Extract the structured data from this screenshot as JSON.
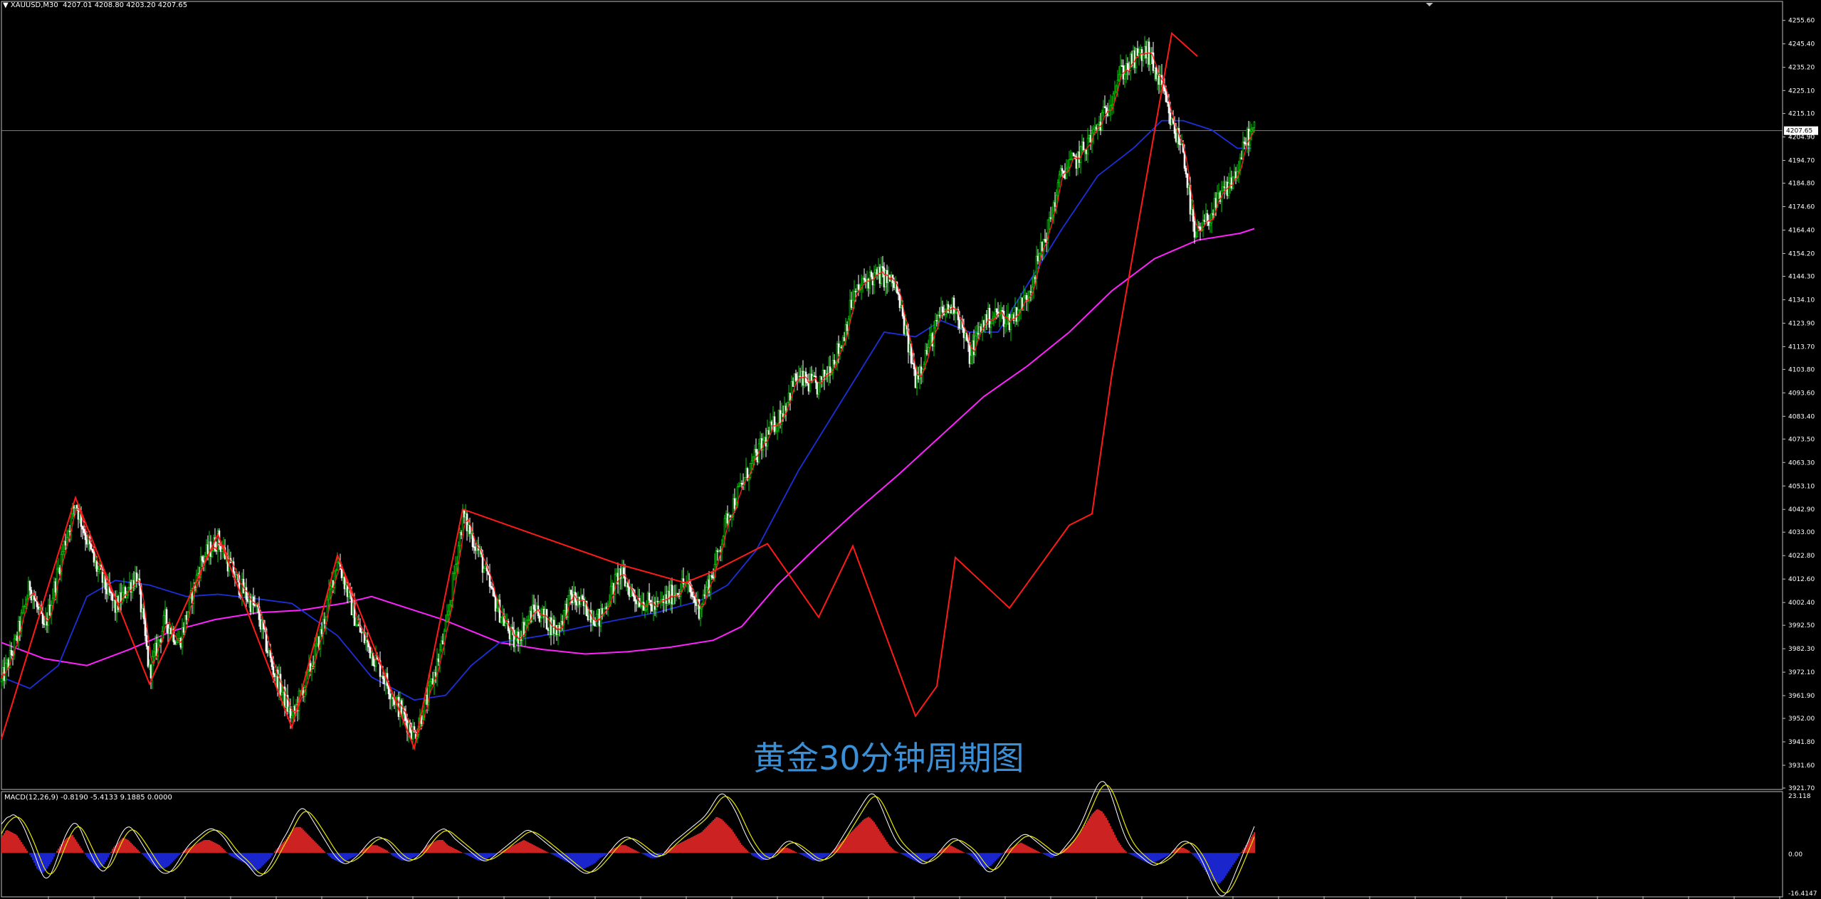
{
  "header": {
    "symbol": "XAUUSD,M30",
    "ohlc": "4207.01 4208.80 4203.20 4207.65"
  },
  "caption": "黄金30分钟周期图",
  "macd": {
    "label": "MACD(12,26,9) -0.8190 -5.4133 9.1885 0.0000",
    "ymax_label": "23.118",
    "zero_label": "0.00",
    "ymin_label": "-16.4147"
  },
  "colors": {
    "background": "#000000",
    "up_candle": "#00d000",
    "down_candle": "#ffffff",
    "ma_fast": "#ff2020",
    "ma_mid": "#1c2fd8",
    "ma_slow": "#ff22ff",
    "zigzag": "#ff1a1a",
    "macd_pos": "#ff2a2a",
    "macd_neg": "#2030ff",
    "macd_line": "#ffffff",
    "signal_line": "#e8e800",
    "price_line": "#808080"
  },
  "chart_data": [
    {
      "type": "candlestick",
      "symbol": "XAUUSD",
      "timeframe": "M30",
      "ylim": [
        3921.7,
        4260.0
      ],
      "current_price": 4207.65,
      "current_price_label": "4207.65",
      "y_ticks": [
        "4255.60",
        "4245.40",
        "4235.20",
        "4225.10",
        "4215.10",
        "4204.90",
        "4194.70",
        "4184.80",
        "4174.60",
        "4164.40",
        "4154.20",
        "4144.30",
        "4134.10",
        "4123.90",
        "4113.70",
        "4103.80",
        "4093.60",
        "4083.40",
        "4073.50",
        "4063.30",
        "4053.10",
        "4042.90",
        "4033.00",
        "4022.80",
        "4012.60",
        "4002.40",
        "3992.50",
        "3982.30",
        "3972.10",
        "3961.90",
        "3952.00",
        "3941.80",
        "3931.60",
        "3921.70"
      ],
      "zigzag_points": [
        [
          0,
          3943
        ],
        [
          52,
          4048
        ],
        [
          104,
          3967
        ],
        [
          152,
          4032
        ],
        [
          204,
          3948
        ],
        [
          236,
          4023
        ],
        [
          290,
          3939
        ],
        [
          324,
          4043
        ],
        [
          434,
          4019
        ],
        [
          480,
          4011
        ],
        [
          500,
          4016
        ],
        [
          538,
          4028
        ],
        [
          574,
          3996
        ],
        [
          598,
          4027
        ],
        [
          642,
          3953
        ],
        [
          657,
          3966
        ],
        [
          670,
          4022
        ],
        [
          708,
          4000
        ],
        [
          750,
          4036
        ],
        [
          766,
          4041
        ],
        [
          780,
          4102
        ],
        [
          822,
          4250
        ],
        [
          840,
          4240
        ]
      ],
      "price_path": [
        [
          0,
          3968
        ],
        [
          10,
          3985
        ],
        [
          20,
          4010
        ],
        [
          30,
          3990
        ],
        [
          45,
          4030
        ],
        [
          52,
          4046
        ],
        [
          65,
          4020
        ],
        [
          80,
          4000
        ],
        [
          95,
          4015
        ],
        [
          104,
          3972
        ],
        [
          115,
          3995
        ],
        [
          125,
          3985
        ],
        [
          140,
          4020
        ],
        [
          152,
          4030
        ],
        [
          165,
          4012
        ],
        [
          180,
          3998
        ],
        [
          190,
          3975
        ],
        [
          204,
          3952
        ],
        [
          215,
          3970
        ],
        [
          225,
          3990
        ],
        [
          236,
          4022
        ],
        [
          250,
          3992
        ],
        [
          265,
          3975
        ],
        [
          278,
          3958
        ],
        [
          290,
          3945
        ],
        [
          300,
          3962
        ],
        [
          312,
          3990
        ],
        [
          324,
          4040
        ],
        [
          335,
          4025
        ],
        [
          345,
          4005
        ],
        [
          360,
          3985
        ],
        [
          375,
          4000
        ],
        [
          390,
          3990
        ],
        [
          400,
          4005
        ],
        [
          410,
          4000
        ],
        [
          420,
          3995
        ],
        [
          434,
          4015
        ],
        [
          445,
          4005
        ],
        [
          460,
          4000
        ],
        [
          480,
          4011
        ],
        [
          490,
          4000
        ],
        [
          500,
          4016
        ],
        [
          510,
          4040
        ],
        [
          525,
          4060
        ],
        [
          538,
          4075
        ],
        [
          548,
          4085
        ],
        [
          558,
          4100
        ],
        [
          574,
          4096
        ],
        [
          590,
          4115
        ],
        [
          598,
          4135
        ],
        [
          608,
          4143
        ],
        [
          618,
          4145
        ],
        [
          628,
          4140
        ],
        [
          642,
          4100
        ],
        [
          650,
          4112
        ],
        [
          660,
          4128
        ],
        [
          670,
          4132
        ],
        [
          680,
          4110
        ],
        [
          690,
          4125
        ],
        [
          700,
          4128
        ],
        [
          708,
          4125
        ],
        [
          720,
          4135
        ],
        [
          735,
          4165
        ],
        [
          745,
          4190
        ],
        [
          755,
          4195
        ],
        [
          766,
          4205
        ],
        [
          775,
          4215
        ],
        [
          785,
          4232
        ],
        [
          795,
          4238
        ],
        [
          805,
          4242
        ],
        [
          815,
          4226
        ],
        [
          822,
          4210
        ],
        [
          830,
          4200
        ],
        [
          838,
          4160
        ],
        [
          848,
          4170
        ],
        [
          858,
          4180
        ],
        [
          868,
          4190
        ],
        [
          875,
          4205
        ],
        [
          880,
          4207.65
        ]
      ],
      "ma_mid_path": [
        [
          0,
          3970
        ],
        [
          20,
          3965
        ],
        [
          40,
          3975
        ],
        [
          60,
          4005
        ],
        [
          80,
          4012
        ],
        [
          104,
          4010
        ],
        [
          130,
          4005
        ],
        [
          152,
          4006
        ],
        [
          180,
          4004
        ],
        [
          204,
          4002
        ],
        [
          236,
          3988
        ],
        [
          260,
          3970
        ],
        [
          290,
          3960
        ],
        [
          312,
          3962
        ],
        [
          330,
          3975
        ],
        [
          350,
          3985
        ],
        [
          380,
          3988
        ],
        [
          410,
          3992
        ],
        [
          434,
          3995
        ],
        [
          460,
          3998
        ],
        [
          490,
          4003
        ],
        [
          510,
          4010
        ],
        [
          530,
          4025
        ],
        [
          560,
          4060
        ],
        [
          590,
          4090
        ],
        [
          620,
          4120
        ],
        [
          642,
          4118
        ],
        [
          660,
          4125
        ],
        [
          680,
          4120
        ],
        [
          700,
          4120
        ],
        [
          720,
          4140
        ],
        [
          745,
          4165
        ],
        [
          770,
          4188
        ],
        [
          795,
          4200
        ],
        [
          815,
          4212
        ],
        [
          830,
          4212
        ],
        [
          850,
          4208
        ],
        [
          868,
          4200
        ],
        [
          878,
          4200
        ]
      ],
      "ma_slow_path": [
        [
          0,
          3985
        ],
        [
          30,
          3978
        ],
        [
          60,
          3975
        ],
        [
          90,
          3982
        ],
        [
          120,
          3990
        ],
        [
          150,
          3995
        ],
        [
          180,
          3998
        ],
        [
          210,
          3999
        ],
        [
          240,
          4002
        ],
        [
          260,
          4005
        ],
        [
          280,
          4001
        ],
        [
          310,
          3995
        ],
        [
          350,
          3985
        ],
        [
          380,
          3982
        ],
        [
          410,
          3980
        ],
        [
          440,
          3981
        ],
        [
          470,
          3983
        ],
        [
          500,
          3986
        ],
        [
          520,
          3992
        ],
        [
          545,
          4010
        ],
        [
          570,
          4025
        ],
        [
          600,
          4042
        ],
        [
          630,
          4058
        ],
        [
          660,
          4075
        ],
        [
          690,
          4092
        ],
        [
          720,
          4105
        ],
        [
          750,
          4120
        ],
        [
          780,
          4138
        ],
        [
          810,
          4152
        ],
        [
          840,
          4160
        ],
        [
          870,
          4163
        ],
        [
          880,
          4165
        ]
      ]
    },
    {
      "type": "macd",
      "params": "12,26,9",
      "ylim": [
        -16.4147,
        23.118
      ],
      "histogram_pattern": [
        6,
        9,
        8,
        7,
        4,
        1,
        -2,
        -6,
        -8,
        -6,
        -3,
        1,
        4,
        6,
        7,
        4,
        1,
        -2,
        -4,
        -6,
        -5,
        -2,
        2,
        4,
        6,
        5,
        3,
        1,
        -1,
        -3,
        -5,
        -6,
        -6,
        -5,
        -3,
        -1,
        1,
        2,
        3,
        4,
        5,
        5,
        4,
        3,
        1,
        -1,
        -2,
        -3,
        -4,
        -6,
        -7,
        -6,
        -4,
        -2,
        1,
        3,
        5,
        8,
        10,
        10,
        8,
        6,
        4,
        2,
        0,
        -2,
        -3,
        -4,
        -3,
        -2,
        -1,
        1,
        2,
        3,
        3,
        2,
        1,
        -1,
        -2,
        -3,
        -3,
        -2,
        -1,
        1,
        3,
        4,
        5,
        5,
        3,
        2,
        1,
        0,
        -1,
        -2,
        -3,
        -3,
        -2,
        -1,
        0,
        1,
        2,
        3,
        4,
        5,
        4,
        3,
        2,
        1,
        0,
        -1,
        -2,
        -3,
        -4,
        -5,
        -6,
        -6,
        -5,
        -4,
        -2,
        -1,
        1,
        2,
        3,
        3,
        2,
        1,
        0,
        -1,
        -2,
        -2,
        -1,
        1,
        2,
        3,
        4,
        5,
        6,
        7,
        8,
        10,
        12,
        14,
        13,
        11,
        9,
        6,
        3,
        1,
        -1,
        -2,
        -3,
        -2,
        -1,
        1,
        2,
        2,
        1,
        0,
        -1,
        -2,
        -3,
        -3,
        -2,
        -1,
        1,
        3,
        5,
        7,
        9,
        11,
        13,
        14,
        12,
        9,
        6,
        3,
        1,
        0,
        -1,
        -2,
        -3,
        -4,
        -3,
        -2,
        -1,
        1,
        2,
        3,
        2,
        1,
        0,
        -1,
        -3,
        -5,
        -6,
        -5,
        -3,
        -1,
        1,
        2,
        3,
        4,
        3,
        2,
        1,
        0,
        -1,
        -2,
        -1,
        1,
        2,
        4,
        6,
        9,
        12,
        15,
        17,
        16,
        13,
        9,
        5,
        2,
        0,
        -1,
        -2,
        -3,
        -4,
        -4,
        -3,
        -2,
        -1,
        1,
        2,
        2,
        1,
        -1,
        -3,
        -6,
        -9,
        -11,
        -12,
        -10,
        -7,
        -4,
        -1,
        2,
        5,
        8
      ]
    }
  ]
}
